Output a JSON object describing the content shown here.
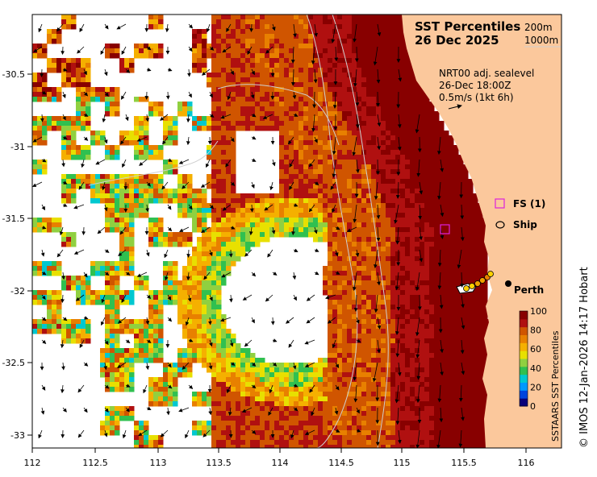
{
  "map": {
    "title_line1": "SST Percentiles",
    "title_line2": "26 Dec 2025",
    "contour_legend": [
      "200m",
      "1000m"
    ],
    "current_info": [
      "NRT00 adj. sealevel",
      "26-Dec 18:00Z",
      "0.5m/s (1kt 6h)"
    ],
    "legend": {
      "fs_label": "FS (1)",
      "ship_label": "Ship"
    },
    "place_label": "Perth",
    "x_ticks": [
      "112",
      "112.5",
      "113",
      "113.5",
      "114",
      "114.5",
      "115",
      "115.5",
      "116"
    ],
    "y_ticks": [
      "-30.5",
      "-31",
      "-31.5",
      "-32",
      "-32.5",
      "-33"
    ],
    "colorbar": {
      "title": "SSTAARS SST Percentiles",
      "ticks": [
        "100",
        "80",
        "60",
        "40",
        "20",
        "0"
      ],
      "colors": [
        "#08007a",
        "#0044dd",
        "#0099ff",
        "#00c8d0",
        "#30c050",
        "#90d040",
        "#e8e000",
        "#f5b000",
        "#e88000",
        "#d05500",
        "#b01010",
        "#880000"
      ]
    },
    "credit": "© IMOS 12-Jan-2026 14:17 Hobart",
    "colors": {
      "land": "#fbc89c",
      "fs_marker": "#dd22dd",
      "contour": "#cfcfcf"
    }
  }
}
